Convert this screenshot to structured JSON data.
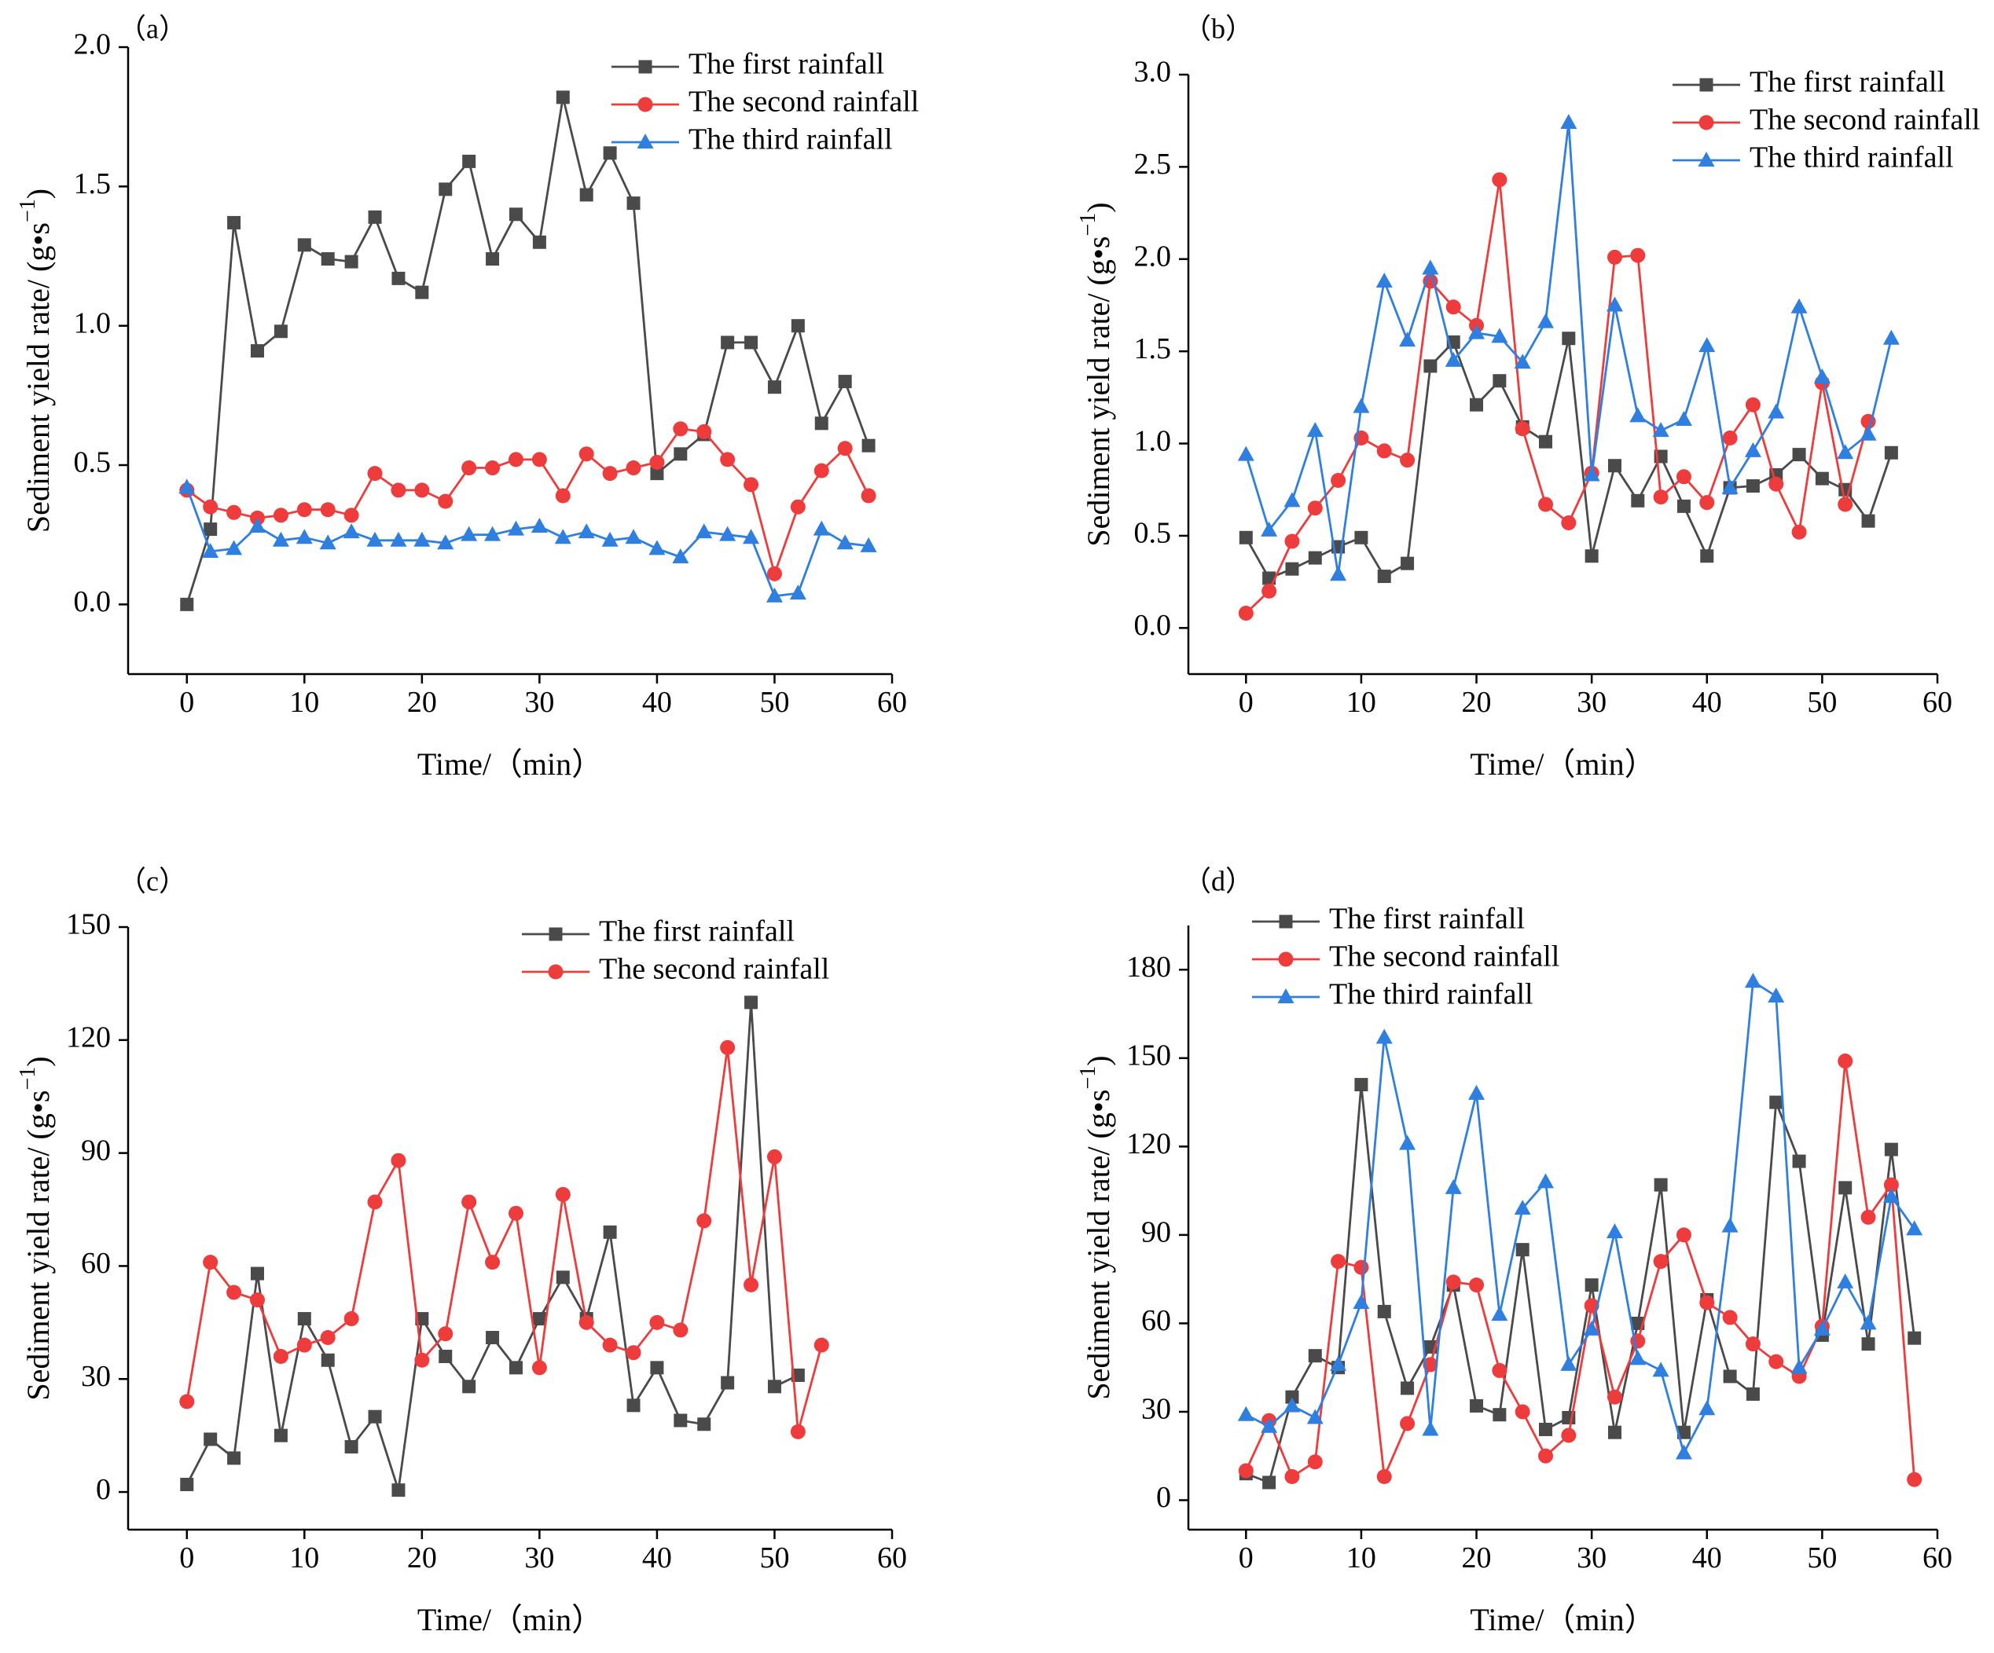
{
  "colors": {
    "first": "#4a4a4a",
    "second": "#ee3b3b",
    "third": "#2f7fe0",
    "axis": "#000000"
  },
  "chart_data": [
    {
      "type": "line",
      "panel_label": "（a）",
      "title": "",
      "xlabel": "Time/（min）",
      "ylabel": "Sediment yield rate/ (g•s",
      "ylabel_sup": "−1",
      "ylabel_end": ")",
      "xlim": [
        -5,
        60
      ],
      "ylim": [
        -0.25,
        2.0
      ],
      "xticks": [
        0,
        10,
        20,
        30,
        40,
        50,
        60
      ],
      "yticks": [
        0.0,
        0.5,
        1.0,
        1.5,
        2.0
      ],
      "ytick_labels": [
        "0.0",
        "0.5",
        "1.0",
        "1.5",
        "2.0"
      ],
      "legend_position": "top-right",
      "series": [
        {
          "name": "The first rainfall",
          "marker": "square",
          "color_key": "first",
          "x": [
            0,
            2,
            4,
            6,
            8,
            10,
            12,
            14,
            16,
            18,
            20,
            22,
            24,
            26,
            28,
            30,
            32,
            34,
            36,
            38,
            40,
            42,
            44,
            46,
            48,
            50,
            52,
            54,
            56,
            58
          ],
          "y": [
            0.0,
            0.27,
            1.37,
            0.91,
            0.98,
            1.29,
            1.24,
            1.23,
            1.39,
            1.17,
            1.12,
            1.49,
            1.59,
            1.24,
            1.4,
            1.3,
            1.82,
            1.47,
            1.62,
            1.44,
            0.47,
            0.54,
            0.61,
            0.94,
            0.94,
            0.78,
            1.0,
            0.65,
            0.8,
            0.57
          ]
        },
        {
          "name": "The second rainfall",
          "marker": "circle",
          "color_key": "second",
          "x": [
            0,
            2,
            4,
            6,
            8,
            10,
            12,
            14,
            16,
            18,
            20,
            22,
            24,
            26,
            28,
            30,
            32,
            34,
            36,
            38,
            40,
            42,
            44,
            46,
            48,
            50,
            52,
            54,
            56,
            58
          ],
          "y": [
            0.41,
            0.35,
            0.33,
            0.31,
            0.32,
            0.34,
            0.34,
            0.32,
            0.47,
            0.41,
            0.41,
            0.37,
            0.49,
            0.49,
            0.52,
            0.52,
            0.39,
            0.54,
            0.47,
            0.49,
            0.51,
            0.63,
            0.62,
            0.52,
            0.43,
            0.11,
            0.35,
            0.48,
            0.56,
            0.39
          ]
        },
        {
          "name": "The third rainfall",
          "marker": "triangle",
          "color_key": "third",
          "x": [
            0,
            2,
            4,
            6,
            8,
            10,
            12,
            14,
            16,
            18,
            20,
            22,
            24,
            26,
            28,
            30,
            32,
            34,
            36,
            38,
            40,
            42,
            44,
            46,
            48,
            50,
            52,
            54,
            56,
            58
          ],
          "y": [
            0.42,
            0.19,
            0.2,
            0.28,
            0.23,
            0.24,
            0.22,
            0.26,
            0.23,
            0.23,
            0.23,
            0.22,
            0.25,
            0.25,
            0.27,
            0.28,
            0.24,
            0.26,
            0.23,
            0.24,
            0.2,
            0.17,
            0.26,
            0.25,
            0.24,
            0.03,
            0.04,
            0.27,
            0.22,
            0.21
          ]
        }
      ]
    },
    {
      "type": "line",
      "panel_label": "（b）",
      "title": "",
      "xlabel": "Time/（min）",
      "ylabel": "Sediment yield rate/ (g•s",
      "ylabel_sup": "−1",
      "ylabel_end": ")",
      "xlim": [
        -5,
        60
      ],
      "ylim": [
        -0.25,
        3.0
      ],
      "xticks": [
        0,
        10,
        20,
        30,
        40,
        50,
        60
      ],
      "yticks": [
        0.0,
        0.5,
        1.0,
        1.5,
        2.0,
        2.5,
        3.0
      ],
      "ytick_labels": [
        "0.0",
        "0.5",
        "1.0",
        "1.5",
        "2.0",
        "2.5",
        "3.0"
      ],
      "legend_position": "top-right",
      "series": [
        {
          "name": "The first rainfall",
          "marker": "square",
          "color_key": "first",
          "x": [
            0,
            2,
            4,
            6,
            8,
            10,
            12,
            14,
            16,
            18,
            20,
            22,
            24,
            26,
            28,
            30,
            32,
            34,
            36,
            38,
            40,
            42,
            44,
            46,
            48,
            50,
            52,
            54,
            56
          ],
          "y": [
            0.49,
            0.27,
            0.32,
            0.38,
            0.44,
            0.49,
            0.28,
            0.35,
            1.42,
            1.55,
            1.21,
            1.34,
            1.09,
            1.01,
            1.57,
            0.39,
            0.88,
            0.69,
            0.93,
            0.66,
            0.39,
            0.76,
            0.77,
            0.83,
            0.94,
            0.81,
            0.75,
            0.58,
            0.95
          ]
        },
        {
          "name": "The second rainfall",
          "marker": "circle",
          "color_key": "second",
          "x": [
            0,
            2,
            4,
            6,
            8,
            10,
            12,
            14,
            16,
            18,
            20,
            22,
            24,
            26,
            28,
            30,
            32,
            34,
            36,
            38,
            40,
            42,
            44,
            46,
            48,
            50,
            52,
            54
          ],
          "y": [
            0.08,
            0.2,
            0.47,
            0.65,
            0.8,
            1.03,
            0.96,
            0.91,
            1.88,
            1.74,
            1.64,
            2.43,
            1.08,
            0.67,
            0.57,
            0.84,
            2.01,
            2.02,
            0.71,
            0.82,
            0.68,
            1.03,
            1.21,
            0.78,
            0.52,
            1.33,
            0.67,
            1.12
          ]
        },
        {
          "name": "The third rainfall",
          "marker": "triangle",
          "color_key": "third",
          "x": [
            0,
            2,
            4,
            6,
            8,
            10,
            12,
            14,
            16,
            18,
            20,
            22,
            24,
            26,
            28,
            30,
            32,
            34,
            36,
            38,
            40,
            42,
            44,
            46,
            48,
            50,
            52,
            54,
            56
          ],
          "y": [
            0.94,
            0.53,
            0.69,
            1.07,
            0.29,
            1.2,
            1.88,
            1.56,
            1.95,
            1.45,
            1.6,
            1.58,
            1.44,
            1.66,
            2.74,
            0.83,
            1.75,
            1.15,
            1.07,
            1.13,
            1.53,
            0.76,
            0.96,
            1.17,
            1.74,
            1.36,
            0.95,
            1.05,
            1.57
          ]
        }
      ]
    },
    {
      "type": "line",
      "panel_label": "（c）",
      "title": "",
      "xlabel": "Time/（min）",
      "ylabel": "Sediment yield rate/ (g•s",
      "ylabel_sup": "−1",
      "ylabel_end": ")",
      "xlim": [
        -5,
        60
      ],
      "ylim": [
        -10,
        150
      ],
      "xticks": [
        0,
        10,
        20,
        30,
        40,
        50,
        60
      ],
      "yticks": [
        0,
        30,
        60,
        90,
        120,
        150
      ],
      "ytick_labels": [
        "0",
        "30",
        "60",
        "90",
        "120",
        "150"
      ],
      "legend_position": "top-right",
      "series": [
        {
          "name": "The first rainfall",
          "marker": "square",
          "color_key": "first",
          "x": [
            0,
            2,
            4,
            6,
            8,
            10,
            12,
            14,
            16,
            18,
            20,
            22,
            24,
            26,
            28,
            30,
            32,
            34,
            36,
            38,
            40,
            42,
            44,
            46,
            48,
            50,
            52
          ],
          "y": [
            2,
            14,
            9,
            58,
            15,
            46,
            35,
            12,
            20,
            0.5,
            46,
            36,
            28,
            41,
            33,
            46,
            57,
            46,
            69,
            23,
            33,
            19,
            18,
            29,
            130,
            28,
            31
          ]
        },
        {
          "name": "The second rainfall",
          "marker": "circle",
          "color_key": "second",
          "x": [
            0,
            2,
            4,
            6,
            8,
            10,
            12,
            14,
            16,
            18,
            20,
            22,
            24,
            26,
            28,
            30,
            32,
            34,
            36,
            38,
            40,
            42,
            44,
            46,
            48,
            50,
            52,
            54
          ],
          "y": [
            24,
            61,
            53,
            51,
            36,
            39,
            41,
            46,
            77,
            88,
            35,
            42,
            77,
            61,
            74,
            33,
            79,
            45,
            39,
            37,
            45,
            43,
            72,
            118,
            55,
            89,
            16,
            39
          ]
        }
      ]
    },
    {
      "type": "line",
      "panel_label": "（d）",
      "title": "",
      "xlabel": "Time/（min）",
      "ylabel": "Sediment yield rate/ (g•s",
      "ylabel_sup": "−1",
      "ylabel_end": ")",
      "xlim": [
        -5,
        60
      ],
      "ylim": [
        -10,
        195
      ],
      "xticks": [
        0,
        10,
        20,
        30,
        40,
        50,
        60
      ],
      "yticks": [
        0,
        30,
        60,
        90,
        120,
        150,
        180
      ],
      "ytick_labels": [
        "0",
        "30",
        "60",
        "90",
        "120",
        "150",
        "180"
      ],
      "legend_position": "top-left",
      "series": [
        {
          "name": "The first rainfall",
          "marker": "square",
          "color_key": "first",
          "x": [
            0,
            2,
            4,
            6,
            8,
            10,
            12,
            14,
            16,
            18,
            20,
            22,
            24,
            26,
            28,
            30,
            32,
            34,
            36,
            38,
            40,
            42,
            44,
            46,
            48,
            50,
            52,
            54,
            56,
            58
          ],
          "y": [
            9,
            6,
            35,
            49,
            45,
            141,
            64,
            38,
            52,
            73,
            32,
            29,
            85,
            24,
            28,
            73,
            23,
            60,
            107,
            23,
            68,
            42,
            36,
            135,
            115,
            56,
            106,
            53,
            119,
            55
          ]
        },
        {
          "name": "The second rainfall",
          "marker": "circle",
          "color_key": "second",
          "x": [
            0,
            2,
            4,
            6,
            8,
            10,
            12,
            14,
            16,
            18,
            20,
            22,
            24,
            26,
            28,
            30,
            32,
            34,
            36,
            38,
            40,
            42,
            44,
            46,
            48,
            50,
            52,
            54,
            56,
            58
          ],
          "y": [
            10,
            27,
            8,
            13,
            81,
            79,
            8,
            26,
            46,
            74,
            73,
            44,
            30,
            15,
            22,
            66,
            35,
            54,
            81,
            90,
            67,
            62,
            53,
            47,
            42,
            59,
            149,
            96,
            107,
            7
          ]
        },
        {
          "name": "The third rainfall",
          "marker": "triangle",
          "color_key": "third",
          "x": [
            0,
            2,
            4,
            6,
            8,
            10,
            12,
            14,
            16,
            18,
            20,
            22,
            24,
            26,
            28,
            30,
            32,
            34,
            36,
            38,
            40,
            42,
            44,
            46,
            48,
            50,
            52,
            54,
            56,
            58
          ],
          "y": [
            29,
            25,
            32,
            28,
            46,
            67,
            157,
            121,
            24,
            106,
            138,
            63,
            99,
            108,
            46,
            58,
            91,
            48,
            44,
            16,
            31,
            93,
            176,
            171,
            45,
            58,
            74,
            60,
            103,
            92
          ]
        }
      ]
    }
  ]
}
